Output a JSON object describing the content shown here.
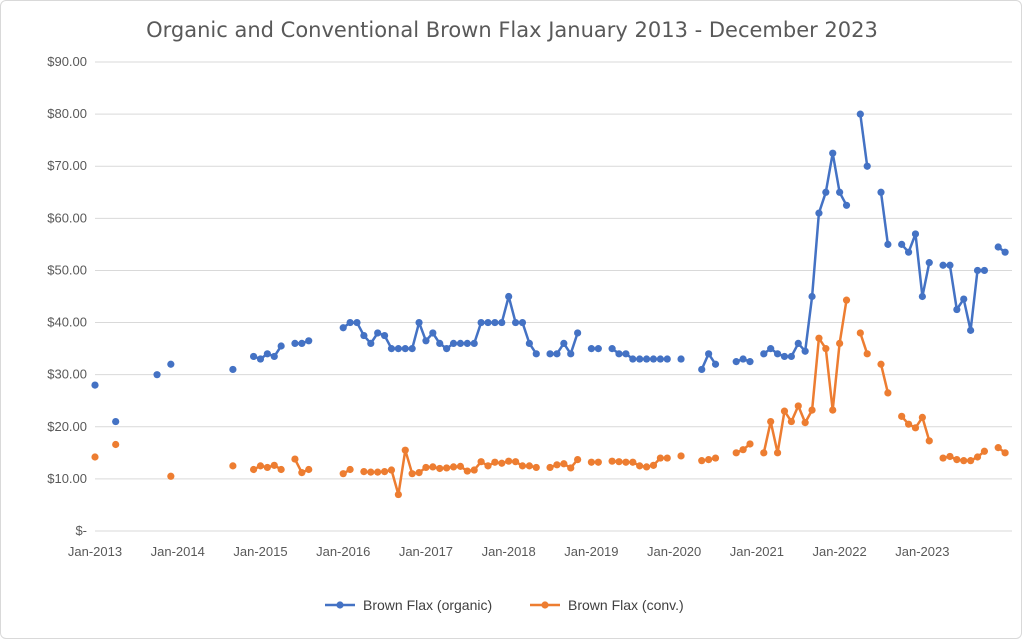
{
  "chart_data": {
    "type": "line",
    "title": "Organic and Conventional Brown Flax January 2013 - December 2023",
    "xlabel": "",
    "ylabel": "",
    "y_ticks": [
      "$-",
      "$10.00",
      "$20.00",
      "$30.00",
      "$40.00",
      "$50.00",
      "$60.00",
      "$70.00",
      "$80.00",
      "$90.00"
    ],
    "ylim": [
      0,
      90
    ],
    "x_ticks": [
      "Jan-2013",
      "Jan-2014",
      "Jan-2015",
      "Jan-2016",
      "Jan-2017",
      "Jan-2018",
      "Jan-2019",
      "Jan-2020",
      "Jan-2021",
      "Jan-2022",
      "Jan-2023"
    ],
    "grid": true,
    "legend_position": "bottom",
    "series": [
      {
        "name": "Brown Flax (organic)",
        "color": "#4472C4",
        "points": [
          [
            "2013-01",
            28.0
          ],
          [
            "2013-04",
            21.0
          ],
          [
            "2013-10",
            30.0
          ],
          [
            "2013-12",
            32.0
          ],
          [
            "2014-09",
            31.0
          ],
          [
            "2014-12",
            33.5
          ],
          [
            "2015-01",
            33.0
          ],
          [
            "2015-02",
            34.0
          ],
          [
            "2015-03",
            33.5
          ],
          [
            "2015-04",
            35.5
          ],
          [
            "2015-06",
            36.0
          ],
          [
            "2015-07",
            36.0
          ],
          [
            "2015-08",
            36.5
          ],
          [
            "2016-01",
            39.0
          ],
          [
            "2016-02",
            40.0
          ],
          [
            "2016-03",
            40.0
          ],
          [
            "2016-04",
            37.5
          ],
          [
            "2016-05",
            36.0
          ],
          [
            "2016-06",
            38.0
          ],
          [
            "2016-07",
            37.5
          ],
          [
            "2016-08",
            35.0
          ],
          [
            "2016-09",
            35.0
          ],
          [
            "2016-10",
            35.0
          ],
          [
            "2016-11",
            35.0
          ],
          [
            "2016-12",
            40.0
          ],
          [
            "2017-01",
            36.5
          ],
          [
            "2017-02",
            38.0
          ],
          [
            "2017-03",
            36.0
          ],
          [
            "2017-04",
            35.0
          ],
          [
            "2017-05",
            36.0
          ],
          [
            "2017-06",
            36.0
          ],
          [
            "2017-07",
            36.0
          ],
          [
            "2017-08",
            36.0
          ],
          [
            "2017-09",
            40.0
          ],
          [
            "2017-10",
            40.0
          ],
          [
            "2017-11",
            40.0
          ],
          [
            "2017-12",
            40.0
          ],
          [
            "2018-01",
            45.0
          ],
          [
            "2018-02",
            40.0
          ],
          [
            "2018-03",
            40.0
          ],
          [
            "2018-04",
            36.0
          ],
          [
            "2018-05",
            34.0
          ],
          [
            "2018-07",
            34.0
          ],
          [
            "2018-08",
            34.0
          ],
          [
            "2018-09",
            36.0
          ],
          [
            "2018-10",
            34.0
          ],
          [
            "2018-11",
            38.0
          ],
          [
            "2019-01",
            35.0
          ],
          [
            "2019-02",
            35.0
          ],
          [
            "2019-04",
            35.0
          ],
          [
            "2019-05",
            34.0
          ],
          [
            "2019-06",
            34.0
          ],
          [
            "2019-07",
            33.0
          ],
          [
            "2019-08",
            33.0
          ],
          [
            "2019-09",
            33.0
          ],
          [
            "2019-10",
            33.0
          ],
          [
            "2019-11",
            33.0
          ],
          [
            "2019-12",
            33.0
          ],
          [
            "2020-02",
            33.0
          ],
          [
            "2020-05",
            31.0
          ],
          [
            "2020-06",
            34.0
          ],
          [
            "2020-07",
            32.0
          ],
          [
            "2020-10",
            32.5
          ],
          [
            "2020-11",
            33.0
          ],
          [
            "2020-12",
            32.5
          ],
          [
            "2021-02",
            34.0
          ],
          [
            "2021-03",
            35.0
          ],
          [
            "2021-04",
            34.0
          ],
          [
            "2021-05",
            33.5
          ],
          [
            "2021-06",
            33.5
          ],
          [
            "2021-07",
            36.0
          ],
          [
            "2021-08",
            34.5
          ],
          [
            "2021-09",
            45.0
          ],
          [
            "2021-10",
            61.0
          ],
          [
            "2021-11",
            65.0
          ],
          [
            "2021-12",
            72.5
          ],
          [
            "2022-01",
            65.0
          ],
          [
            "2022-02",
            62.5
          ],
          [
            "2022-04",
            80.0
          ],
          [
            "2022-05",
            70.0
          ],
          [
            "2022-07",
            65.0
          ],
          [
            "2022-08",
            55.0
          ],
          [
            "2022-10",
            55.0
          ],
          [
            "2022-11",
            53.5
          ],
          [
            "2022-12",
            57.0
          ],
          [
            "2023-01",
            45.0
          ],
          [
            "2023-02",
            51.5
          ],
          [
            "2023-04",
            51.0
          ],
          [
            "2023-05",
            51.0
          ],
          [
            "2023-06",
            42.5
          ],
          [
            "2023-07",
            44.5
          ],
          [
            "2023-08",
            38.5
          ],
          [
            "2023-09",
            50.0
          ],
          [
            "2023-10",
            50.0
          ],
          [
            "2023-12",
            54.5
          ],
          [
            "2024-01",
            53.5
          ]
        ]
      },
      {
        "name": "Brown Flax (conv.)",
        "color": "#ED7D31",
        "points": [
          [
            "2013-01",
            14.2
          ],
          [
            "2013-04",
            16.6
          ],
          [
            "2013-12",
            10.5
          ],
          [
            "2014-09",
            12.5
          ],
          [
            "2014-12",
            11.8
          ],
          [
            "2015-01",
            12.5
          ],
          [
            "2015-02",
            12.2
          ],
          [
            "2015-03",
            12.6
          ],
          [
            "2015-04",
            11.8
          ],
          [
            "2015-06",
            13.8
          ],
          [
            "2015-07",
            11.2
          ],
          [
            "2015-08",
            11.8
          ],
          [
            "2016-01",
            11.0
          ],
          [
            "2016-02",
            11.8
          ],
          [
            "2016-04",
            11.4
          ],
          [
            "2016-05",
            11.3
          ],
          [
            "2016-06",
            11.3
          ],
          [
            "2016-07",
            11.4
          ],
          [
            "2016-08",
            11.7
          ],
          [
            "2016-09",
            7.0
          ],
          [
            "2016-10",
            15.5
          ],
          [
            "2016-11",
            11.0
          ],
          [
            "2016-12",
            11.2
          ],
          [
            "2017-01",
            12.2
          ],
          [
            "2017-02",
            12.3
          ],
          [
            "2017-03",
            12.0
          ],
          [
            "2017-04",
            12.1
          ],
          [
            "2017-05",
            12.3
          ],
          [
            "2017-06",
            12.4
          ],
          [
            "2017-07",
            11.5
          ],
          [
            "2017-08",
            11.7
          ],
          [
            "2017-09",
            13.3
          ],
          [
            "2017-10",
            12.5
          ],
          [
            "2017-11",
            13.2
          ],
          [
            "2017-12",
            13.0
          ],
          [
            "2018-01",
            13.4
          ],
          [
            "2018-02",
            13.3
          ],
          [
            "2018-03",
            12.5
          ],
          [
            "2018-04",
            12.5
          ],
          [
            "2018-05",
            12.2
          ],
          [
            "2018-07",
            12.2
          ],
          [
            "2018-08",
            12.7
          ],
          [
            "2018-09",
            12.9
          ],
          [
            "2018-10",
            12.1
          ],
          [
            "2018-11",
            13.7
          ],
          [
            "2019-01",
            13.2
          ],
          [
            "2019-02",
            13.2
          ],
          [
            "2019-04",
            13.4
          ],
          [
            "2019-05",
            13.3
          ],
          [
            "2019-06",
            13.2
          ],
          [
            "2019-07",
            13.2
          ],
          [
            "2019-08",
            12.5
          ],
          [
            "2019-09",
            12.3
          ],
          [
            "2019-10",
            12.6
          ],
          [
            "2019-11",
            14.0
          ],
          [
            "2019-12",
            14.0
          ],
          [
            "2020-02",
            14.4
          ],
          [
            "2020-05",
            13.5
          ],
          [
            "2020-06",
            13.7
          ],
          [
            "2020-07",
            14.0
          ],
          [
            "2020-10",
            15.0
          ],
          [
            "2020-11",
            15.6
          ],
          [
            "2020-12",
            16.7
          ],
          [
            "2021-02",
            15.0
          ],
          [
            "2021-03",
            21.0
          ],
          [
            "2021-04",
            15.0
          ],
          [
            "2021-05",
            23.0
          ],
          [
            "2021-06",
            21.0
          ],
          [
            "2021-07",
            24.0
          ],
          [
            "2021-08",
            20.8
          ],
          [
            "2021-09",
            23.2
          ],
          [
            "2021-10",
            37.0
          ],
          [
            "2021-11",
            35.0
          ],
          [
            "2021-12",
            23.2
          ],
          [
            "2022-01",
            36.0
          ],
          [
            "2022-02",
            44.3
          ],
          [
            "2022-04",
            38.0
          ],
          [
            "2022-05",
            34.0
          ],
          [
            "2022-07",
            32.0
          ],
          [
            "2022-08",
            26.5
          ],
          [
            "2022-10",
            22.0
          ],
          [
            "2022-11",
            20.5
          ],
          [
            "2022-12",
            19.8
          ],
          [
            "2023-01",
            21.8
          ],
          [
            "2023-02",
            17.3
          ],
          [
            "2023-04",
            14.0
          ],
          [
            "2023-05",
            14.3
          ],
          [
            "2023-06",
            13.7
          ],
          [
            "2023-07",
            13.5
          ],
          [
            "2023-08",
            13.5
          ],
          [
            "2023-09",
            14.2
          ],
          [
            "2023-10",
            15.3
          ],
          [
            "2023-12",
            16.0
          ],
          [
            "2024-01",
            15.0
          ]
        ]
      }
    ]
  }
}
